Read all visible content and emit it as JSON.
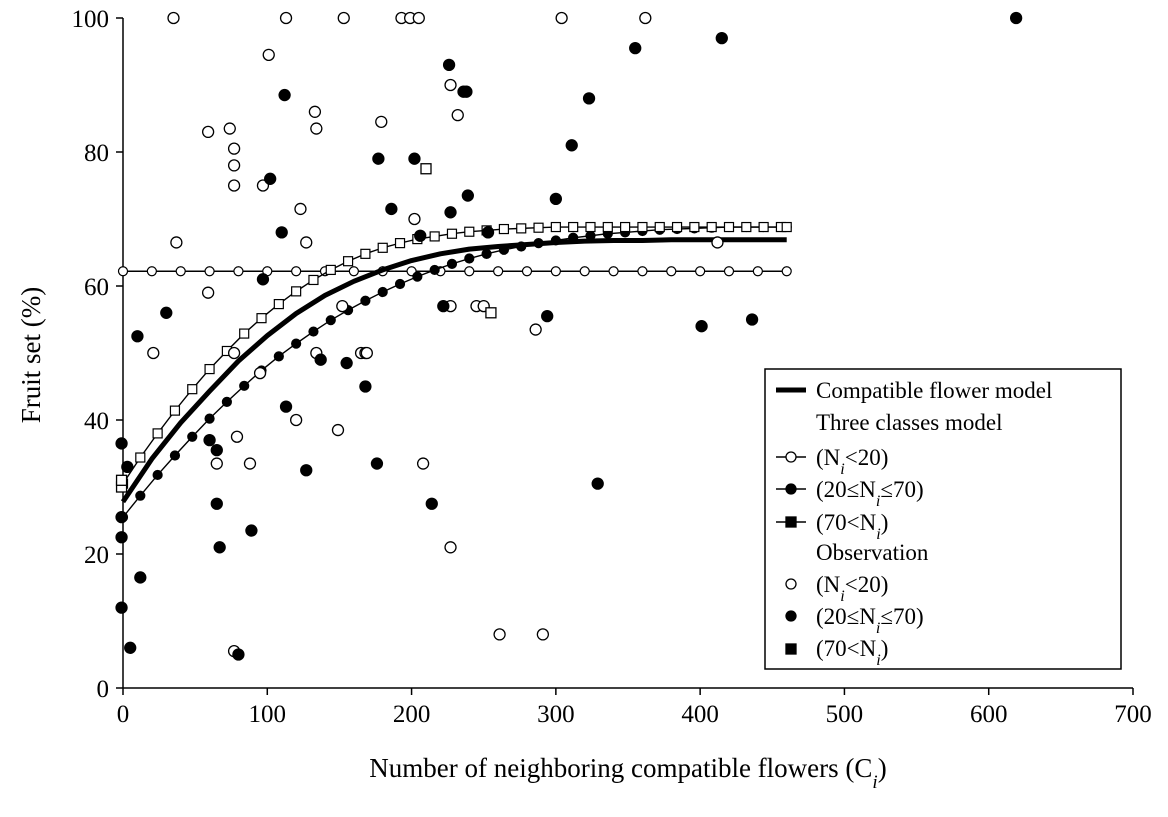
{
  "chart_data": {
    "type": "scatter",
    "xlabel": "Number of neighboring compatible flowers (C",
    "xlabel_sub": "i",
    "xlabel_close": ")",
    "ylabel": "Fruit set (%)",
    "xlim": [
      0,
      700
    ],
    "ylim": [
      0,
      100
    ],
    "x_ticks": [
      "0",
      "100",
      "200",
      "300",
      "400",
      "500",
      "600",
      "700"
    ],
    "y_ticks": [
      "0",
      "20",
      "40",
      "60",
      "80",
      "100"
    ],
    "grid": false,
    "legend_position": "right",
    "legend": {
      "compatible": "Compatible flower model",
      "three_classes": "Three classes model",
      "observation": "Observation",
      "class_low": "(N",
      "class_low_rest": "<20)",
      "class_mid": "(20≤N",
      "class_mid_rest": "≤70)",
      "class_high": "(70<N",
      "class_high_rest": ")",
      "sub": "i"
    },
    "model_lines": {
      "compatible_flower_model": {
        "x": [
          0,
          20,
          40,
          60,
          80,
          100,
          120,
          140,
          160,
          180,
          200,
          220,
          240,
          260,
          280,
          300,
          320,
          340,
          360,
          380,
          400,
          420,
          440,
          460
        ],
        "y": [
          27.8,
          34.2,
          39.6,
          44.3,
          48.8,
          52.6,
          55.9,
          58.6,
          60.7,
          62.4,
          63.8,
          64.8,
          65.5,
          65.9,
          66.2,
          66.5,
          66.7,
          66.8,
          66.8,
          66.9,
          66.9,
          66.9,
          66.9,
          66.9
        ]
      },
      "class_low": {
        "x": [
          0,
          20,
          40,
          60,
          80,
          100,
          120,
          140,
          160,
          180,
          200,
          220,
          240,
          260,
          280,
          300,
          320,
          340,
          360,
          380,
          400,
          420,
          440,
          460
        ],
        "y": [
          62.2,
          62.2,
          62.2,
          62.2,
          62.2,
          62.2,
          62.2,
          62.2,
          62.2,
          62.2,
          62.2,
          62.2,
          62.2,
          62.2,
          62.2,
          62.2,
          62.2,
          62.2,
          62.2,
          62.2,
          62.2,
          62.2,
          62.2,
          62.2
        ]
      },
      "class_mid": {
        "x": [
          0,
          12,
          24,
          36,
          48,
          60,
          72,
          84,
          96,
          108,
          120,
          132,
          144,
          156,
          168,
          180,
          192,
          204,
          216,
          228,
          240,
          252,
          264,
          276,
          288,
          300,
          312,
          324,
          336,
          348,
          360,
          372,
          384,
          396,
          408,
          420,
          432,
          444,
          456,
          460
        ],
        "y": [
          25.5,
          28.7,
          31.8,
          34.7,
          37.5,
          40.2,
          42.7,
          45.1,
          47.4,
          49.5,
          51.4,
          53.2,
          54.9,
          56.4,
          57.8,
          59.1,
          60.3,
          61.4,
          62.4,
          63.3,
          64.1,
          64.8,
          65.4,
          65.9,
          66.4,
          66.8,
          67.2,
          67.5,
          67.8,
          68.0,
          68.2,
          68.4,
          68.5,
          68.6,
          68.7,
          68.8,
          68.8,
          68.8,
          68.8,
          68.8
        ]
      },
      "class_high": {
        "x": [
          0,
          12,
          24,
          36,
          48,
          60,
          72,
          84,
          96,
          108,
          120,
          132,
          144,
          156,
          168,
          180,
          192,
          204,
          216,
          228,
          240,
          252,
          264,
          276,
          288,
          300,
          312,
          324,
          336,
          348,
          360,
          372,
          384,
          396,
          408,
          420,
          432,
          444,
          456,
          460
        ],
        "y": [
          30.5,
          34.4,
          38.0,
          41.4,
          44.6,
          47.6,
          50.3,
          52.9,
          55.2,
          57.3,
          59.2,
          60.9,
          62.4,
          63.7,
          64.8,
          65.7,
          66.4,
          67.0,
          67.4,
          67.8,
          68.1,
          68.3,
          68.5,
          68.6,
          68.7,
          68.8,
          68.8,
          68.8,
          68.8,
          68.8,
          68.8,
          68.8,
          68.8,
          68.8,
          68.8,
          68.8,
          68.8,
          68.8,
          68.8,
          68.8
        ]
      }
    },
    "observations": {
      "class_low": [
        [
          35,
          100
        ],
        [
          113,
          100
        ],
        [
          153,
          100
        ],
        [
          193,
          100
        ],
        [
          199,
          100
        ],
        [
          205,
          100
        ],
        [
          304,
          100
        ],
        [
          362,
          100
        ],
        [
          101,
          94.5
        ],
        [
          227,
          90
        ],
        [
          133,
          86
        ],
        [
          232,
          85.5
        ],
        [
          134,
          83.5
        ],
        [
          179,
          84.5
        ],
        [
          59,
          83
        ],
        [
          74,
          83.5
        ],
        [
          77,
          80.5
        ],
        [
          77,
          78
        ],
        [
          97,
          75
        ],
        [
          77,
          75
        ],
        [
          123,
          71.5
        ],
        [
          202,
          70
        ],
        [
          37,
          66.5
        ],
        [
          127,
          66.5
        ],
        [
          412,
          66.5
        ],
        [
          59,
          59
        ],
        [
          152,
          57
        ],
        [
          227,
          57
        ],
        [
          245,
          57
        ],
        [
          250,
          57
        ],
        [
          21,
          50
        ],
        [
          165,
          50
        ],
        [
          168,
          50
        ],
        [
          169,
          50
        ],
        [
          134,
          50
        ],
        [
          77,
          50
        ],
        [
          95,
          47
        ],
        [
          120,
          40
        ],
        [
          149,
          38.5
        ],
        [
          79,
          37.5
        ],
        [
          65,
          33.5
        ],
        [
          88,
          33.5
        ],
        [
          208,
          33.5
        ],
        [
          286,
          53.5
        ],
        [
          227,
          21
        ],
        [
          261,
          8
        ],
        [
          291,
          8
        ],
        [
          77,
          5.5
        ]
      ],
      "class_mid": [
        [
          -1,
          36.5
        ],
        [
          3,
          33
        ],
        [
          -1,
          25.5
        ],
        [
          -1,
          22.5
        ],
        [
          -1,
          12
        ],
        [
          5,
          6
        ],
        [
          10,
          52.5
        ],
        [
          12,
          16.5
        ],
        [
          30,
          56
        ],
        [
          60,
          37
        ],
        [
          65,
          35.5
        ],
        [
          65,
          27.5
        ],
        [
          67,
          21
        ],
        [
          89,
          23.5
        ],
        [
          80,
          5
        ],
        [
          112,
          88.5
        ],
        [
          102,
          76
        ],
        [
          110,
          68
        ],
        [
          97,
          61
        ],
        [
          113,
          42
        ],
        [
          127,
          32.5
        ],
        [
          137,
          49
        ],
        [
          155,
          48.5
        ],
        [
          168,
          45
        ],
        [
          176,
          33.5
        ],
        [
          177,
          79
        ],
        [
          186,
          71.5
        ],
        [
          202,
          79
        ],
        [
          206,
          67.5
        ],
        [
          214,
          27.5
        ],
        [
          222,
          57
        ],
        [
          226,
          93
        ],
        [
          227,
          71
        ],
        [
          236,
          89
        ],
        [
          238,
          89
        ],
        [
          239,
          73.5
        ],
        [
          253,
          68
        ],
        [
          294,
          55.5
        ],
        [
          300,
          73
        ],
        [
          311,
          81
        ],
        [
          323,
          88
        ],
        [
          329,
          30.5
        ],
        [
          355,
          95.5
        ],
        [
          401,
          54
        ],
        [
          415,
          97
        ],
        [
          436,
          55
        ],
        [
          619,
          100
        ]
      ],
      "class_high": [
        [
          -1,
          30
        ],
        [
          -1,
          31
        ],
        [
          210,
          77.5
        ],
        [
          255,
          56
        ]
      ]
    }
  }
}
